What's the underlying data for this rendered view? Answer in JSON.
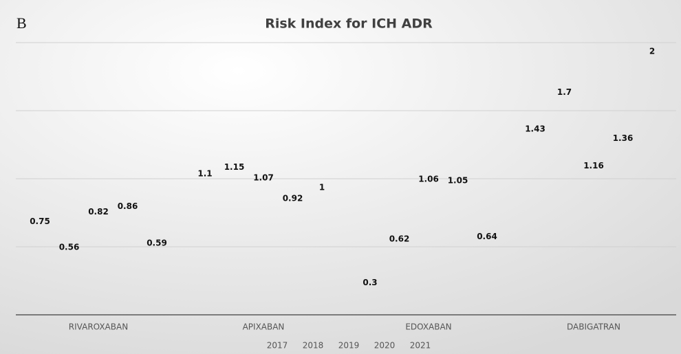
{
  "chart_data": {
    "type": "bar",
    "panel_label": "B",
    "title": "Risk Index for ICH ADR",
    "categories": [
      "RIVAROXABAN",
      "APIXABAN",
      "EDOXABAN",
      "DABIGATRAN"
    ],
    "series": [
      {
        "name": "2017",
        "color": "none",
        "values": [
          0.75,
          1.1,
          0.3,
          1.43
        ]
      },
      {
        "name": "2018",
        "color": "none",
        "values": [
          0.56,
          1.15,
          0.62,
          1.7
        ]
      },
      {
        "name": "2019",
        "color": "none",
        "values": [
          0.82,
          1.07,
          1.06,
          1.16
        ]
      },
      {
        "name": "2020",
        "color": "none",
        "values": [
          0.86,
          0.92,
          1.05,
          1.36
        ]
      },
      {
        "name": "2021",
        "color": "none",
        "values": [
          0.59,
          1,
          0.64,
          2
        ]
      }
    ],
    "ylim": [
      0,
      2
    ],
    "yticks": [
      0,
      0.5,
      1,
      1.5,
      2
    ],
    "ytick_labels": false,
    "grid": true,
    "legend": "bottom"
  }
}
